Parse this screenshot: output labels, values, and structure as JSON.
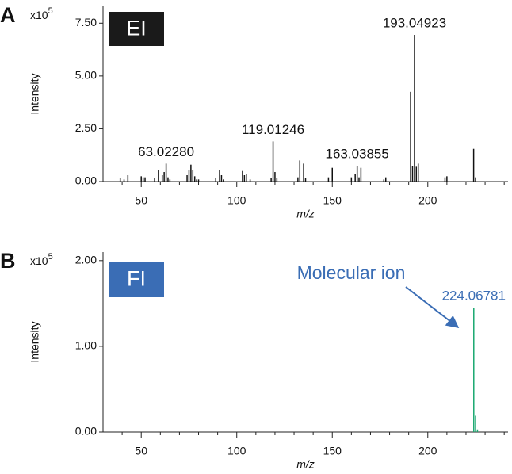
{
  "chart_data": [
    {
      "type": "stem",
      "panel_label": "A",
      "badge": "EI",
      "badge_color": "#1a1a1a",
      "multiplier_base": "x10",
      "multiplier_exponent": "5",
      "y_label": "Intensity",
      "x_label": "m/z",
      "color": "#111111",
      "label_color": "#111111",
      "x": [
        39,
        41,
        43,
        50,
        51,
        52,
        57,
        59,
        61,
        62,
        63.0228,
        64,
        65,
        74,
        75,
        76,
        77,
        78,
        79,
        80,
        89,
        91,
        92,
        93,
        103,
        104,
        105,
        107,
        118,
        119.01246,
        120,
        121,
        132,
        133,
        135,
        136,
        148,
        150,
        160,
        162,
        163.03855,
        164,
        165,
        177,
        178,
        191,
        192,
        193.04923,
        194,
        195,
        209,
        210,
        224,
        225
      ],
      "values": [
        0.15,
        0.1,
        0.3,
        0.25,
        0.2,
        0.2,
        0.15,
        0.55,
        0.3,
        0.45,
        0.85,
        0.2,
        0.1,
        0.3,
        0.55,
        0.8,
        0.55,
        0.25,
        0.1,
        0.1,
        0.15,
        0.55,
        0.3,
        0.1,
        0.5,
        0.3,
        0.35,
        0.1,
        0.15,
        1.9,
        0.45,
        0.15,
        0.2,
        1.0,
        0.85,
        0.15,
        0.2,
        0.65,
        0.2,
        0.35,
        0.75,
        0.2,
        0.65,
        0.1,
        0.2,
        4.25,
        0.75,
        6.95,
        0.7,
        0.85,
        0.2,
        0.25,
        1.55,
        0.2
      ],
      "labels": [
        null,
        null,
        null,
        null,
        null,
        null,
        null,
        null,
        null,
        null,
        "63.02280",
        null,
        null,
        null,
        null,
        null,
        null,
        null,
        null,
        null,
        null,
        null,
        null,
        null,
        null,
        null,
        null,
        null,
        null,
        "119.01246",
        null,
        null,
        null,
        null,
        null,
        null,
        null,
        null,
        null,
        null,
        "163.03855",
        null,
        null,
        null,
        null,
        null,
        null,
        "193.04923",
        null,
        null,
        null,
        null,
        null,
        null
      ],
      "xlim": [
        30,
        242
      ],
      "xticks": [
        50,
        100,
        150,
        200
      ],
      "xminorticks": [
        40,
        60,
        70,
        80,
        90,
        110,
        120,
        130,
        140,
        160,
        170,
        180,
        190,
        210,
        220,
        230,
        240
      ],
      "ylim": [
        0,
        8.3
      ],
      "yticks": [
        {
          "value": 0,
          "label": "0.00"
        },
        {
          "value": 2.5,
          "label": "2.50"
        },
        {
          "value": 5,
          "label": "5.00"
        },
        {
          "value": 7.5,
          "label": "7.50"
        }
      ]
    },
    {
      "type": "stem",
      "panel_label": "B",
      "badge": "FI",
      "badge_color": "#3a6db5",
      "multiplier_base": "x10",
      "multiplier_exponent": "5",
      "y_label": "Intensity",
      "x_label": "m/z",
      "color": "#1aa870",
      "label_color": "#3a6db5",
      "annotation": "Molecular ion",
      "x": [
        224.06781,
        225,
        226
      ],
      "values": [
        1.45,
        0.19,
        0.03
      ],
      "labels": [
        "224.06781",
        null,
        null
      ],
      "xlim": [
        30,
        242
      ],
      "xticks": [
        50,
        100,
        150,
        200
      ],
      "xminorticks": [
        40,
        60,
        70,
        80,
        90,
        110,
        120,
        130,
        140,
        160,
        170,
        180,
        190,
        210,
        220,
        230,
        240
      ],
      "ylim": [
        0,
        2.1
      ],
      "yticks": [
        {
          "value": 0,
          "label": "0.00"
        },
        {
          "value": 1,
          "label": "1.00"
        },
        {
          "value": 2,
          "label": "2.00"
        }
      ]
    }
  ]
}
